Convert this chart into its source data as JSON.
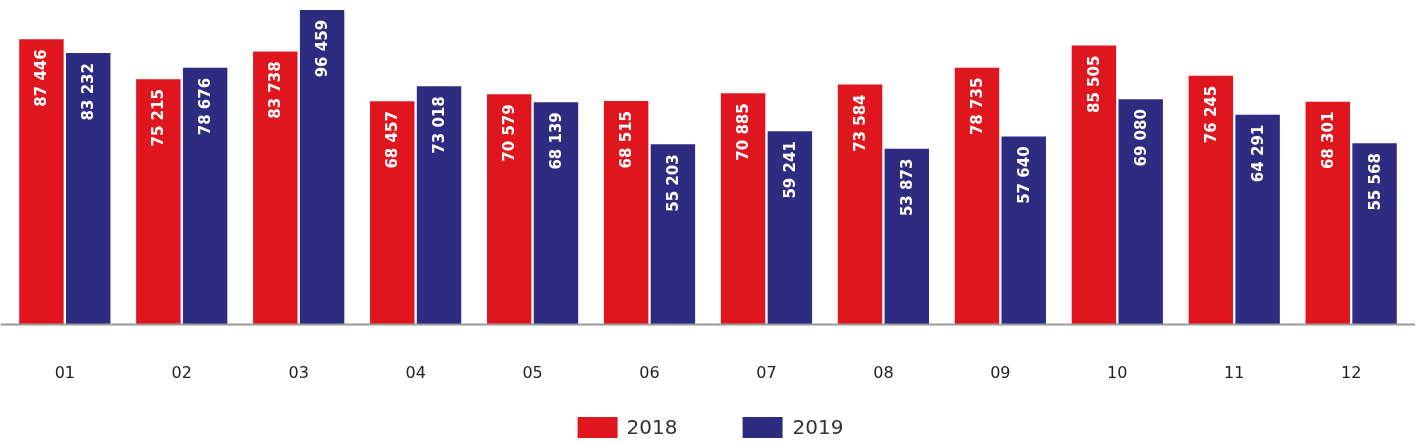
{
  "chart_data": {
    "type": "bar",
    "categories": [
      "01",
      "02",
      "03",
      "04",
      "05",
      "06",
      "07",
      "08",
      "09",
      "10",
      "11",
      "12"
    ],
    "series": [
      {
        "name": "2018",
        "color": "#e0161f",
        "values": [
          87446,
          75215,
          83738,
          68457,
          70579,
          68515,
          70885,
          73584,
          78735,
          85505,
          76245,
          68301
        ],
        "value_labels": [
          "87 446",
          "75 215",
          "83 738",
          "68 457",
          "70 579",
          "68 515",
          "70 885",
          "73 584",
          "78 735",
          "85 505",
          "76 245",
          "68 301"
        ]
      },
      {
        "name": "2019",
        "color": "#2e2c80",
        "values": [
          83232,
          78676,
          96459,
          73018,
          68139,
          55203,
          59241,
          53873,
          57640,
          69080,
          64291,
          55568
        ],
        "value_labels": [
          "83 232",
          "78 676",
          "96 459",
          "73 018",
          "68 139",
          "55 203",
          "59 241",
          "53 873",
          "57 640",
          "69 080",
          "64 291",
          "55 568"
        ]
      }
    ],
    "legend": "bottom"
  }
}
